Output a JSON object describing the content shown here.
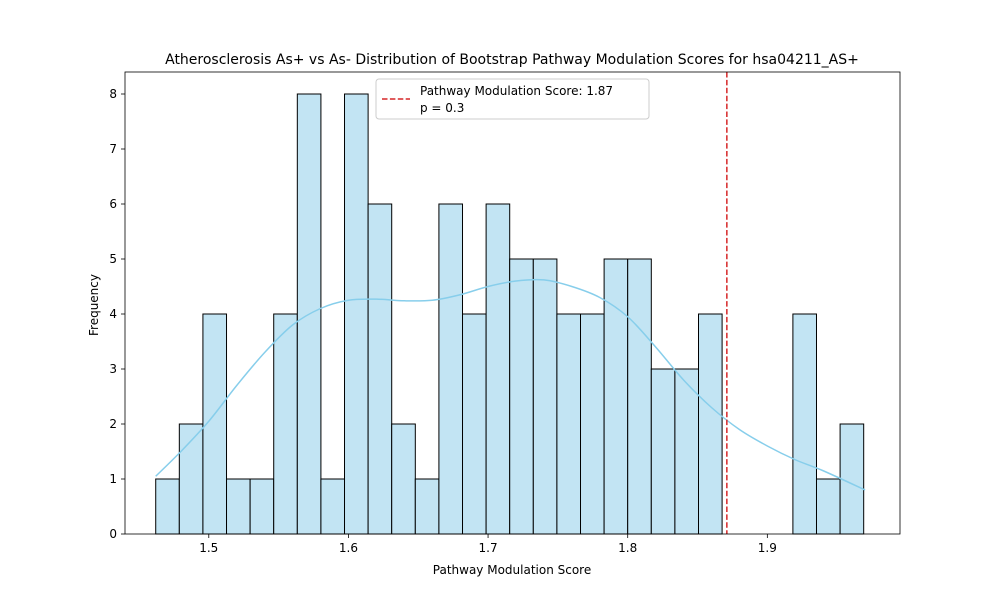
{
  "chart_data": {
    "type": "bar",
    "title": "Atherosclerosis As+ vs As- Distribution of Bootstrap Pathway Modulation Scores for hsa04211_AS+",
    "xlabel": "Pathway Modulation Score",
    "ylabel": "Frequency",
    "xlim": [
      1.44,
      1.995
    ],
    "ylim": [
      0,
      8.4
    ],
    "x_ticks": [
      1.5,
      1.6,
      1.7,
      1.8,
      1.9
    ],
    "x_tick_labels": [
      "1.5",
      "1.6",
      "1.7",
      "1.8",
      "1.9"
    ],
    "y_ticks": [
      0,
      1,
      2,
      3,
      4,
      5,
      6,
      7,
      8
    ],
    "y_tick_labels": [
      "0",
      "1",
      "2",
      "3",
      "4",
      "5",
      "6",
      "7",
      "8"
    ],
    "grid": false,
    "bin_start": 1.462,
    "bin_width": 0.0169,
    "frequencies": [
      1,
      2,
      4,
      1,
      1,
      4,
      8,
      1,
      8,
      6,
      2,
      1,
      6,
      4,
      6,
      5,
      5,
      4,
      4,
      5,
      5,
      3,
      3,
      4,
      0,
      0,
      0,
      4,
      1,
      2
    ],
    "kde": {
      "x": [
        1.462,
        1.48,
        1.5,
        1.52,
        1.54,
        1.56,
        1.58,
        1.6,
        1.62,
        1.64,
        1.66,
        1.68,
        1.7,
        1.72,
        1.74,
        1.76,
        1.78,
        1.8,
        1.82,
        1.84,
        1.86,
        1.88,
        1.9,
        1.92,
        1.94,
        1.97
      ],
      "y": [
        1.05,
        1.5,
        2.05,
        2.7,
        3.3,
        3.8,
        4.1,
        4.25,
        4.27,
        4.24,
        4.25,
        4.35,
        4.5,
        4.6,
        4.62,
        4.5,
        4.3,
        3.95,
        3.4,
        2.8,
        2.3,
        1.9,
        1.6,
        1.35,
        1.15,
        0.8
      ]
    },
    "vline": {
      "x": 1.871
    },
    "legend": {
      "position": "top-center",
      "line1": "Pathway Modulation Score: 1.87",
      "line2": "p = 0.3"
    },
    "colors": {
      "bar_fill": "#c2e4f3",
      "bar_edge": "#000000",
      "kde_line": "#87ceeb",
      "vline": "#d62728"
    }
  }
}
